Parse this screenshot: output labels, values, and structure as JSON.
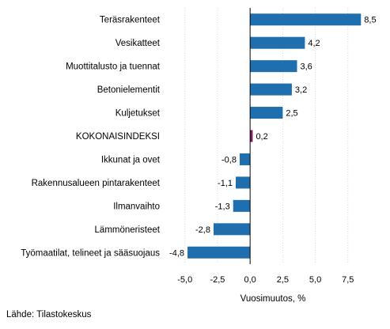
{
  "chart_data": {
    "type": "bar",
    "orientation": "horizontal",
    "categories": [
      "Teräsrakenteet",
      "Vesikatteet",
      "Muottitalusto ja tuennat",
      "Betonielementit",
      "Kuljetukset",
      "KOKONAISINDEKSI",
      "Ikkunat ja ovet",
      "Rakennusalueen pintarakenteet",
      "Ilmanvaihto",
      "Lämmöneristeet",
      "Työmaatilat, telineet ja sääsuojaus"
    ],
    "values": [
      8.5,
      4.2,
      3.6,
      3.2,
      2.5,
      0.2,
      -0.8,
      -1.1,
      -1.3,
      -2.8,
      -4.8
    ],
    "value_labels": [
      "8,5",
      "4,2",
      "3,6",
      "3,2",
      "2,5",
      "0,2",
      "-0,8",
      "-1,1",
      "-1,3",
      "-2,8",
      "-4,8"
    ],
    "highlight_index": 5,
    "xlabel": "Vuosimuutos, %",
    "xlim": [
      -6.5,
      10
    ],
    "xticks": [
      -5,
      -2.5,
      0,
      2.5,
      5,
      7.5
    ],
    "xtick_labels": [
      "-5,0",
      "-2,5",
      "0,0",
      "2,5",
      "5,0",
      "7,5"
    ],
    "grid": "vertical",
    "colors": {
      "bar": "#1f6fae",
      "highlight": "#7a1f5c",
      "grid": "#d9d9d9",
      "zero_line": "#000000"
    }
  },
  "source": "Lähde: Tilastokeskus"
}
